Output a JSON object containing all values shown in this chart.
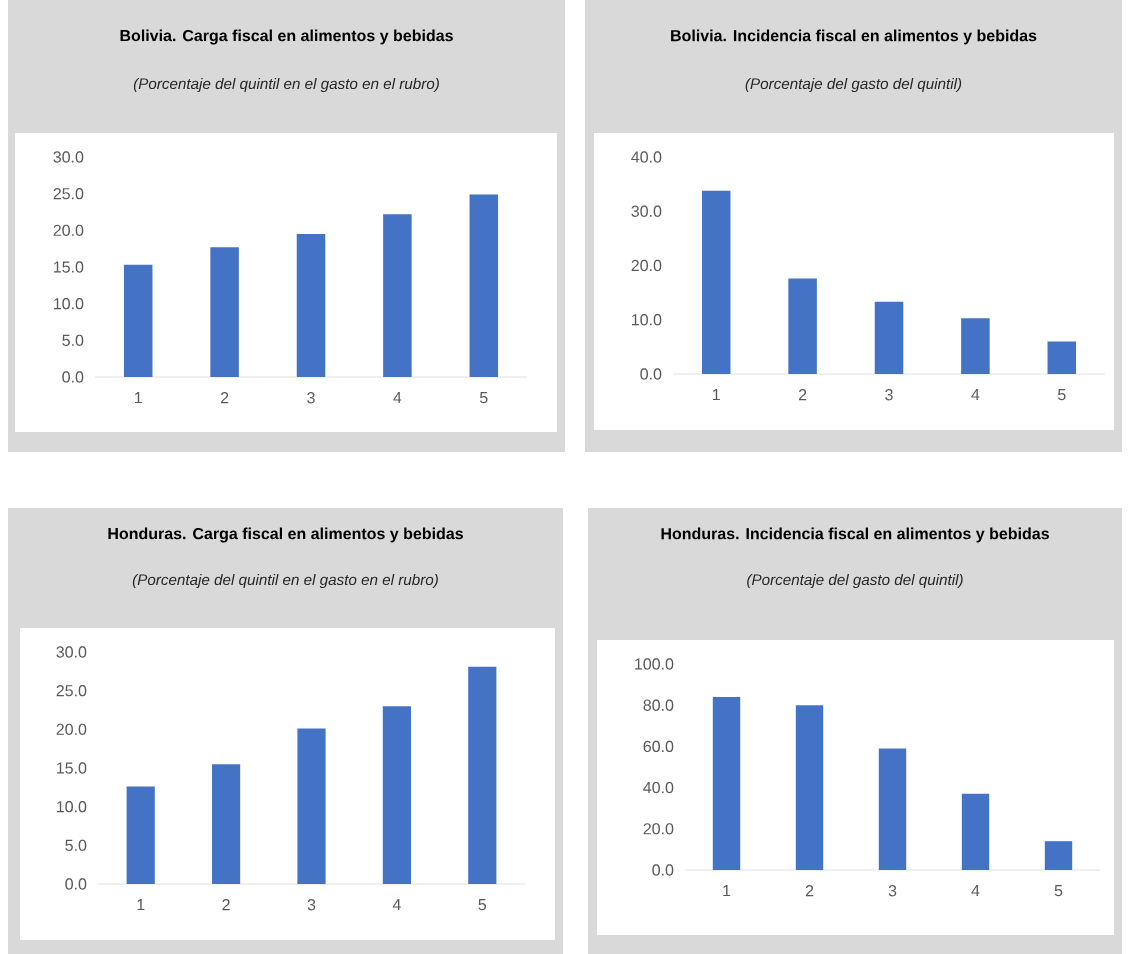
{
  "chart_data": [
    {
      "type": "bar",
      "title": "Bolivia. Carga fiscal en alimentos y bebidas",
      "subtitle": "(Porcentaje del quintil en el gasto en el rubro)",
      "categories": [
        "1",
        "2",
        "3",
        "4",
        "5"
      ],
      "values": [
        15.3,
        17.7,
        19.5,
        22.2,
        24.9
      ],
      "color": "#4472c4",
      "ylim": [
        0,
        30
      ],
      "yticks": [
        {
          "value": 0,
          "label": "0.0"
        },
        {
          "value": 5,
          "label": "5.0"
        },
        {
          "value": 10,
          "label": "10.0"
        },
        {
          "value": 15,
          "label": "15.0"
        },
        {
          "value": 20,
          "label": "20.0"
        },
        {
          "value": 25,
          "label": "25.0"
        },
        {
          "value": 30,
          "label": "30.0"
        }
      ]
    },
    {
      "type": "bar",
      "title": "Bolivia. Incidencia fiscal en alimentos y bebidas",
      "subtitle": "(Porcentaje del gasto del quintil)",
      "categories": [
        "1",
        "2",
        "3",
        "4",
        "5"
      ],
      "values": [
        33.8,
        17.6,
        13.3,
        10.3,
        6.0
      ],
      "color": "#4472c4",
      "ylim": [
        0,
        40
      ],
      "yticks": [
        {
          "value": 0,
          "label": "0.0"
        },
        {
          "value": 10,
          "label": "10.0"
        },
        {
          "value": 20,
          "label": "20.0"
        },
        {
          "value": 30,
          "label": "30.0"
        },
        {
          "value": 40,
          "label": "40.0"
        }
      ]
    },
    {
      "type": "bar",
      "title": "Honduras. Carga fiscal en alimentos y bebidas",
      "subtitle": "(Porcentaje del quintil en el gasto en el rubro)",
      "categories": [
        "1",
        "2",
        "3",
        "4",
        "5"
      ],
      "values": [
        12.6,
        15.5,
        20.1,
        23.0,
        28.1
      ],
      "color": "#4472c4",
      "ylim": [
        0,
        30
      ],
      "yticks": [
        {
          "value": 0,
          "label": "0.0"
        },
        {
          "value": 5,
          "label": "5.0"
        },
        {
          "value": 10,
          "label": "10.0"
        },
        {
          "value": 15,
          "label": "15.0"
        },
        {
          "value": 20,
          "label": "20.0"
        },
        {
          "value": 25,
          "label": "25.0"
        },
        {
          "value": 30,
          "label": "30.0"
        }
      ]
    },
    {
      "type": "bar",
      "title": "Honduras. Incidencia fiscal en alimentos y bebidas",
      "subtitle": "(Porcentaje del gasto del quintil)",
      "categories": [
        "1",
        "2",
        "3",
        "4",
        "5"
      ],
      "values": [
        84,
        80,
        59,
        37,
        14
      ],
      "color": "#4472c4",
      "ylim": [
        0,
        100
      ],
      "yticks": [
        {
          "value": 0,
          "label": "0.0"
        },
        {
          "value": 20,
          "label": "20.0"
        },
        {
          "value": 40,
          "label": "40.0"
        },
        {
          "value": 60,
          "label": "60.0"
        },
        {
          "value": 80,
          "label": "80.0"
        },
        {
          "value": 100,
          "label": "100.0"
        }
      ]
    }
  ]
}
